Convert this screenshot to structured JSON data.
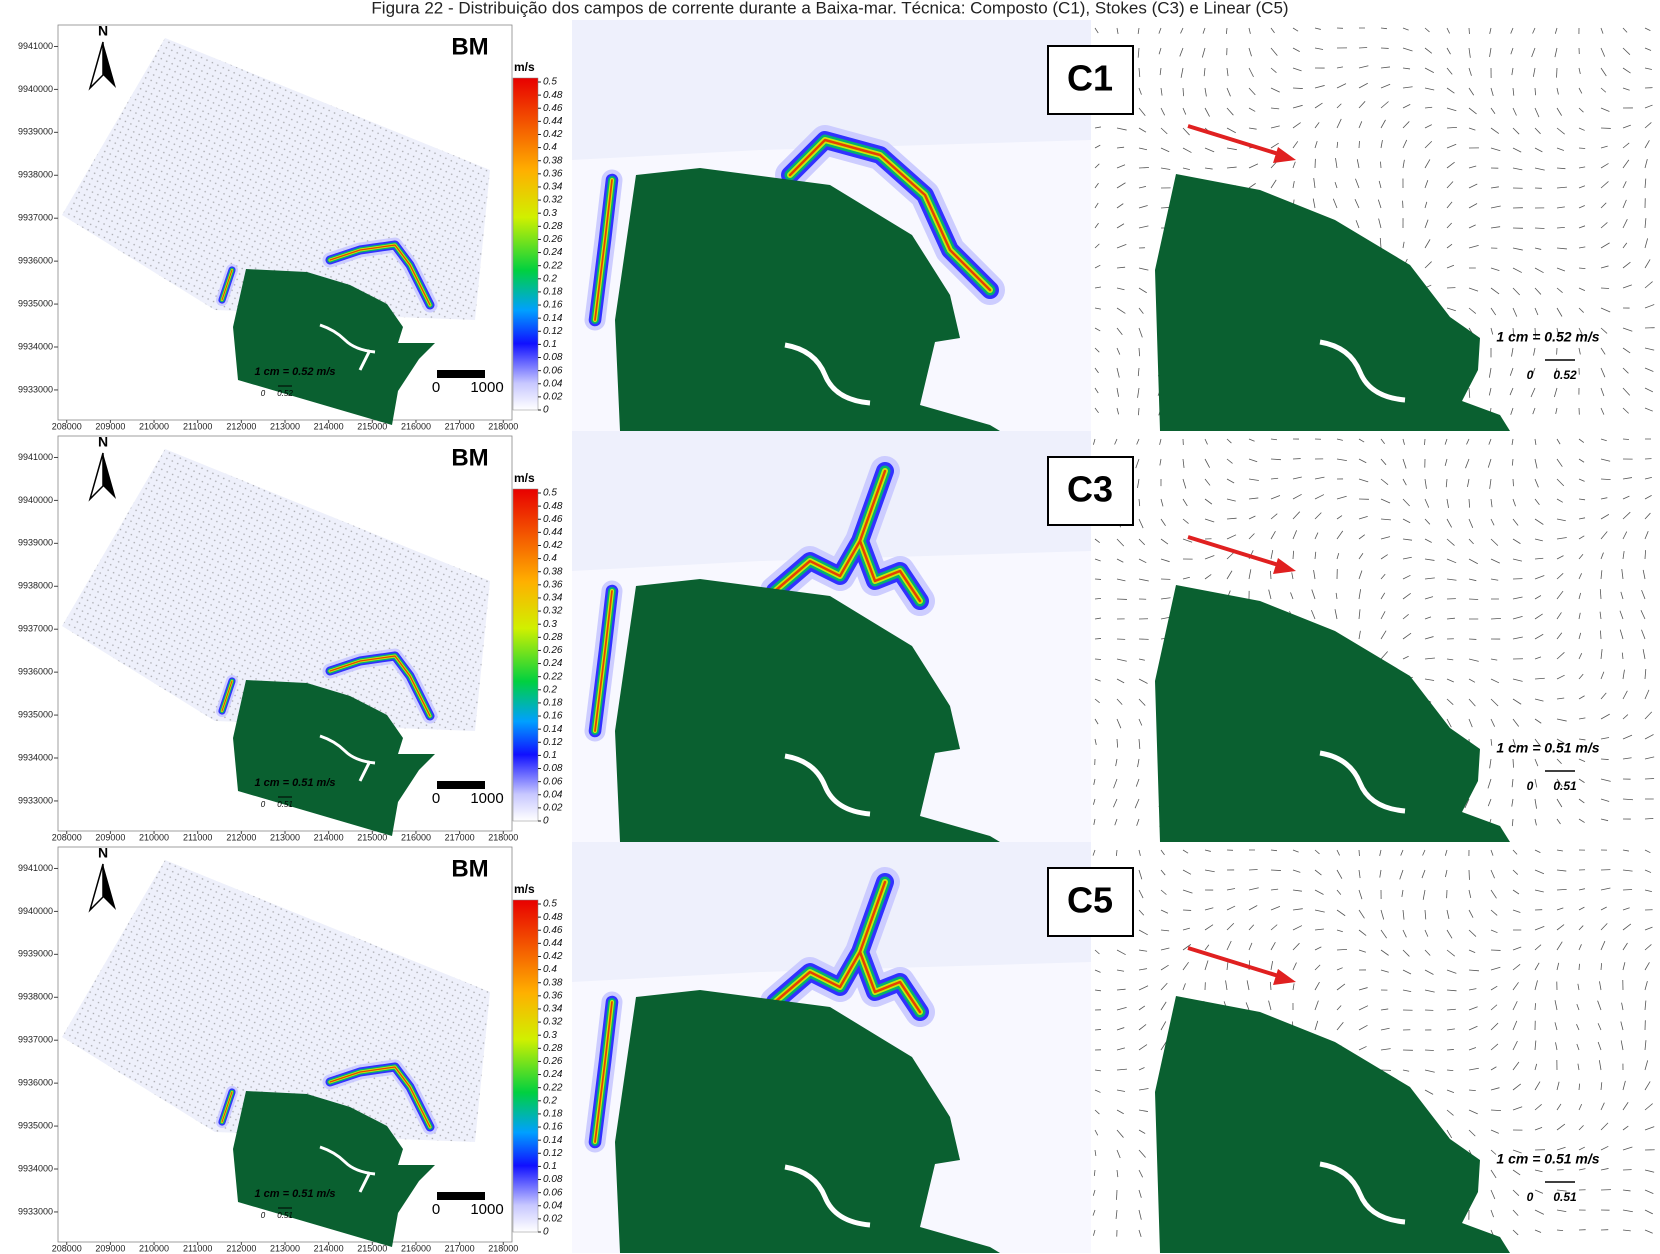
{
  "caption": "Figura 22 - Distribuição dos campos de corrente durante a Baixa-mar. Técnica: Composto (C1), Stokes (C3) e Linear (C5)",
  "north": "N",
  "xlim": [
    207800,
    218200
  ],
  "xticks": [
    208000,
    209000,
    210000,
    211000,
    212000,
    213000,
    214000,
    215000,
    216000,
    217000,
    218000
  ],
  "ylim": [
    9932300,
    9941500
  ],
  "yticks": [
    9941000,
    9940000,
    9939000,
    9938000,
    9937000,
    9936000,
    9935000,
    9934000,
    9933000
  ],
  "colorbar": {
    "unit": "m/s",
    "range": [
      0,
      0.5
    ],
    "ticks": [
      0.5,
      0.48,
      0.46,
      0.44,
      0.42,
      0.4,
      0.38,
      0.36,
      0.34,
      0.32,
      0.3,
      0.28,
      0.26,
      0.24,
      0.22,
      0.2,
      0.18,
      0.16,
      0.14,
      0.12,
      0.1,
      0.08,
      0.06,
      0.04,
      0.02,
      0
    ]
  },
  "panels": [
    {
      "label": "BM",
      "case": "C1",
      "scale_text": "1 cm = 0.52 m/s",
      "scale_zero": "0",
      "scale_value": "0.52",
      "bar_zero": "0",
      "bar_length": "1000"
    },
    {
      "label": "BM",
      "case": "C3",
      "scale_text": "1 cm = 0.51 m/s",
      "scale_zero": "0",
      "scale_value": "0.51",
      "bar_zero": "0",
      "bar_length": "1000"
    },
    {
      "label": "BM",
      "case": "C5",
      "scale_text": "1 cm = 0.51 m/s",
      "scale_zero": "0",
      "scale_value": "0.51",
      "bar_zero": "0",
      "bar_length": "1000"
    }
  ]
}
